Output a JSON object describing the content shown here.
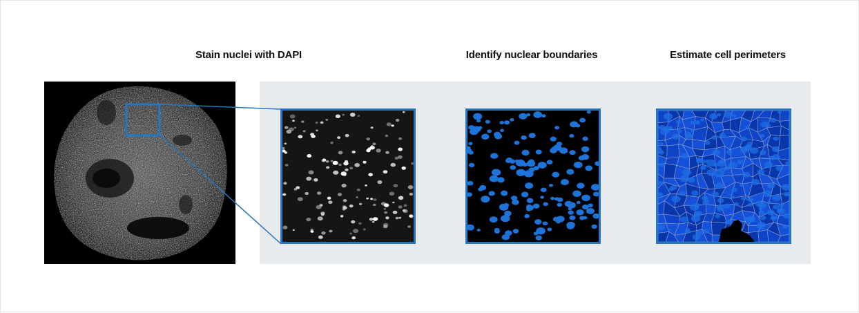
{
  "steps": [
    {
      "title": "Stain nuclei with DAPI"
    },
    {
      "title": "Identify nuclear boundaries"
    },
    {
      "title": "Estimate cell perimeters"
    }
  ],
  "colors": {
    "highlight_blue": "#2477c2",
    "panel_background": "#e8ebee",
    "nucleus_blue": "#1e73d8",
    "cell_blue": "#0d3fc4",
    "boundary_gray": "#8fa0c4"
  },
  "images": {
    "overview": "tissue-core-dapi-micrograph",
    "tile_1": "dapi-grayscale-nuclei",
    "tile_2": "segmented-nuclei-mask",
    "tile_3": "cell-perimeter-voronoi"
  }
}
